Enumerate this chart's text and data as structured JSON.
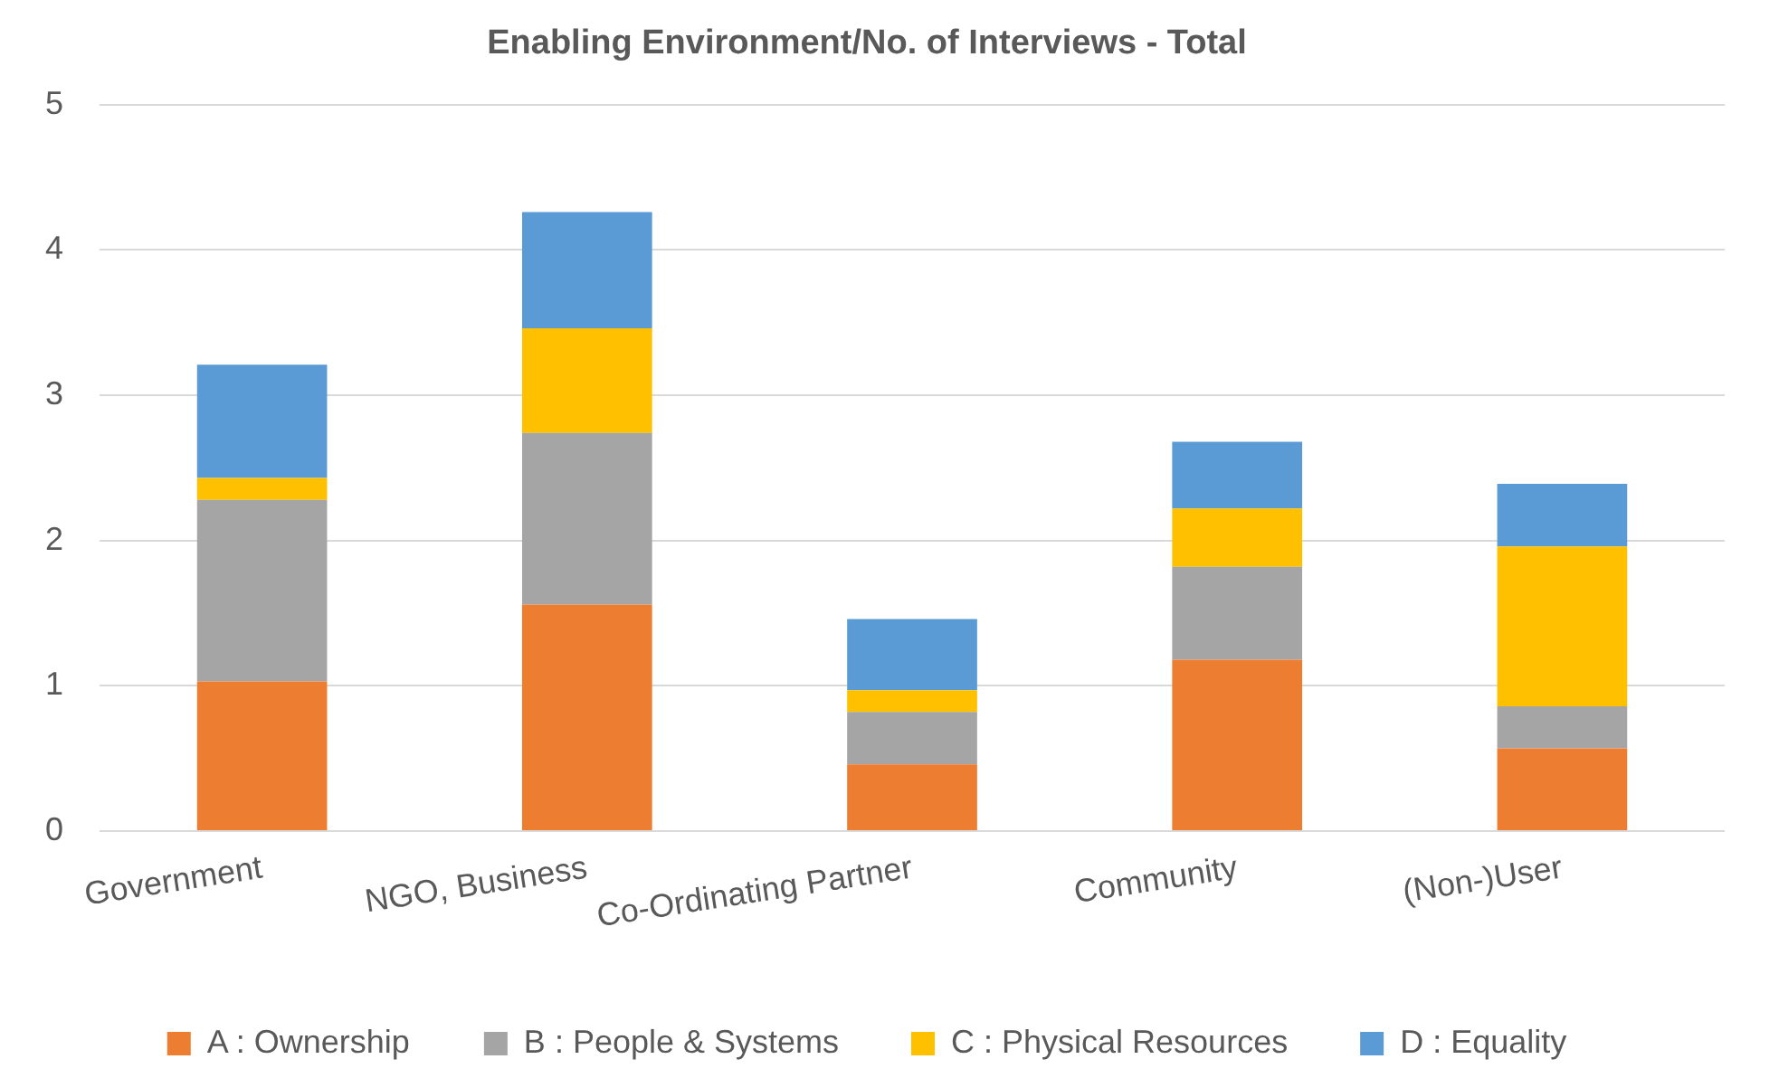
{
  "chart_data": {
    "type": "bar",
    "title": "Enabling Environment/No. of Interviews - Total",
    "categories": [
      "Government",
      "NGO, Business",
      "Co-Ordinating Partner",
      "Community",
      "(Non-)User"
    ],
    "stacked": true,
    "series": [
      {
        "name": "A : Ownership",
        "color": "#ed7d31",
        "values": [
          1.03,
          1.56,
          0.46,
          1.18,
          0.57
        ]
      },
      {
        "name": "B : People & Systems",
        "color": "#a5a5a5",
        "values": [
          1.25,
          1.18,
          0.36,
          0.64,
          0.29
        ]
      },
      {
        "name": "C : Physical Resources",
        "color": "#ffc000",
        "values": [
          0.15,
          0.72,
          0.15,
          0.4,
          1.1
        ]
      },
      {
        "name": "D : Equality",
        "color": "#5b9bd5",
        "values": [
          0.78,
          0.8,
          0.49,
          0.46,
          0.43
        ]
      }
    ],
    "ylim": [
      0,
      5
    ],
    "yticks": [
      0,
      1,
      2,
      3,
      4,
      5
    ],
    "grid": "y",
    "legend": "bottom"
  }
}
